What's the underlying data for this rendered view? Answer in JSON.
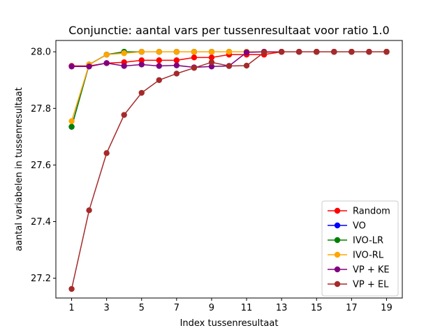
{
  "chart_data": {
    "type": "line",
    "title": "Conjunctie: aantal vars per tussenresultaat voor ratio 1.0",
    "xlabel": "Index tussenresultaat",
    "ylabel": "aantal variabelen in tussenresultaat",
    "xlim": [
      0.1,
      19.9
    ],
    "ylim": [
      27.13,
      28.04
    ],
    "xticks": [
      1,
      3,
      5,
      7,
      9,
      11,
      13,
      15,
      17,
      19
    ],
    "yticks": [
      27.2,
      27.4,
      27.6,
      27.8,
      28.0
    ],
    "ytick_labels": [
      "27.2",
      "27.4",
      "27.6",
      "27.8",
      "28.0"
    ],
    "grid": false,
    "legend_position": "lower-right",
    "x": [
      1,
      2,
      3,
      4,
      5,
      6,
      7,
      8,
      9,
      10,
      11,
      12,
      13,
      14,
      15,
      16,
      17,
      18,
      19
    ],
    "series": [
      {
        "name": "Random",
        "color": "#ff0000",
        "values": [
          27.95,
          27.95,
          27.96,
          27.963,
          27.97,
          27.97,
          27.97,
          27.98,
          27.98,
          27.99,
          27.99,
          27.99,
          28.0,
          28.0,
          28.0,
          28.0,
          28.0,
          28.0,
          28.0
        ]
      },
      {
        "name": "VO",
        "color": "#0000ff",
        "values": [
          27.735,
          27.955,
          27.99,
          28.0,
          28.0,
          28.0,
          28.0,
          28.0,
          28.0,
          28.0,
          28.0,
          28.0,
          28.0,
          28.0,
          28.0,
          28.0,
          28.0,
          28.0,
          28.0
        ]
      },
      {
        "name": "IVO-LR",
        "color": "#008000",
        "values": [
          27.735,
          27.955,
          27.99,
          28.0,
          28.0,
          28.0,
          28.0,
          28.0,
          28.0,
          28.0,
          28.0,
          28.0,
          28.0,
          28.0,
          28.0,
          28.0,
          28.0,
          28.0,
          28.0
        ]
      },
      {
        "name": "IVO-RL",
        "color": "#ffa500",
        "values": [
          27.755,
          27.955,
          27.99,
          27.995,
          28.0,
          28.0,
          28.0,
          28.0,
          28.0,
          28.0,
          28.0,
          28.0,
          28.0,
          28.0,
          28.0,
          28.0,
          28.0,
          28.0,
          28.0
        ]
      },
      {
        "name": "VP + KE",
        "color": "#800080",
        "values": [
          27.948,
          27.948,
          27.96,
          27.95,
          27.955,
          27.95,
          27.952,
          27.945,
          27.948,
          27.95,
          27.998,
          28.0,
          28.0,
          28.0,
          28.0,
          28.0,
          28.0,
          28.0,
          28.0
        ]
      },
      {
        "name": "VP + EL",
        "color": "#a52a2a",
        "values": [
          27.162,
          27.44,
          27.642,
          27.777,
          27.855,
          27.9,
          27.923,
          27.943,
          27.963,
          27.95,
          27.951,
          27.998,
          28.0,
          28.0,
          28.0,
          28.0,
          28.0,
          28.0,
          28.0
        ]
      }
    ]
  }
}
